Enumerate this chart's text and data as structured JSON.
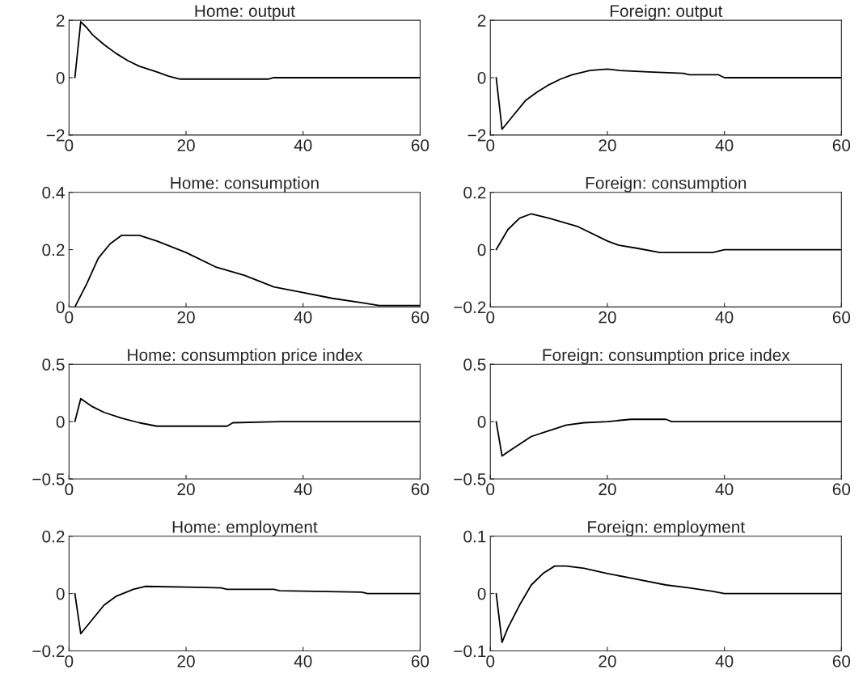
{
  "chart_data": [
    {
      "type": "line",
      "title": "Home: output",
      "xlim": [
        0,
        60
      ],
      "xticks": [
        0,
        20,
        40,
        60
      ],
      "ylim": [
        -2,
        2
      ],
      "yticks": [
        {
          "value": -2,
          "label": "−2"
        },
        0,
        2
      ],
      "grid": false,
      "legend": false,
      "series": [
        {
          "color": "#000000",
          "x": [
            1,
            2,
            3,
            4,
            6,
            8,
            10,
            12,
            15,
            17,
            19,
            25,
            34,
            35,
            60
          ],
          "values": [
            0,
            1.95,
            1.75,
            1.5,
            1.15,
            0.85,
            0.6,
            0.4,
            0.2,
            0.05,
            -0.05,
            -0.05,
            -0.05,
            0,
            0
          ]
        }
      ]
    },
    {
      "type": "line",
      "title": "Foreign: output",
      "xlim": [
        0,
        60
      ],
      "xticks": [
        0,
        20,
        40,
        60
      ],
      "ylim": [
        -2,
        2
      ],
      "yticks": [
        {
          "value": -2,
          "label": "−2"
        },
        0,
        2
      ],
      "grid": false,
      "legend": false,
      "series": [
        {
          "color": "#000000",
          "x": [
            1,
            2,
            4,
            6,
            8,
            10,
            12,
            14,
            17,
            20,
            22,
            27,
            33,
            34,
            39,
            40,
            60
          ],
          "values": [
            0,
            -1.8,
            -1.3,
            -0.8,
            -0.5,
            -0.25,
            -0.05,
            0.1,
            0.25,
            0.3,
            0.25,
            0.2,
            0.15,
            0.1,
            0.1,
            0,
            0
          ]
        }
      ]
    },
    {
      "type": "line",
      "title": "Home: consumption",
      "xlim": [
        0,
        60
      ],
      "xticks": [
        0,
        20,
        40,
        60
      ],
      "ylim": [
        0,
        0.4
      ],
      "yticks": [
        0,
        0.2,
        0.4
      ],
      "grid": false,
      "legend": false,
      "series": [
        {
          "color": "#000000",
          "x": [
            1,
            3,
            5,
            7,
            9,
            12,
            15,
            20,
            25,
            30,
            35,
            40,
            45,
            50,
            53,
            60
          ],
          "values": [
            0,
            0.08,
            0.17,
            0.22,
            0.25,
            0.25,
            0.23,
            0.19,
            0.14,
            0.11,
            0.07,
            0.05,
            0.03,
            0.015,
            0.005,
            0.005
          ]
        }
      ]
    },
    {
      "type": "line",
      "title": "Foreign: consumption",
      "xlim": [
        0,
        60
      ],
      "xticks": [
        0,
        20,
        40,
        60
      ],
      "ylim": [
        -0.2,
        0.2
      ],
      "yticks": [
        {
          "value": -0.2,
          "label": "−0.2"
        },
        0,
        0.2
      ],
      "grid": false,
      "legend": false,
      "series": [
        {
          "color": "#000000",
          "x": [
            1,
            3,
            5,
            7,
            10,
            15,
            20,
            22,
            25,
            29,
            38,
            40,
            60
          ],
          "values": [
            0,
            0.07,
            0.11,
            0.125,
            0.11,
            0.08,
            0.03,
            0.015,
            0.005,
            -0.01,
            -0.01,
            0,
            0
          ]
        }
      ]
    },
    {
      "type": "line",
      "title": "Home: consumption price index",
      "xlim": [
        0,
        60
      ],
      "xticks": [
        0,
        20,
        40,
        60
      ],
      "ylim": [
        -0.5,
        0.5
      ],
      "yticks": [
        {
          "value": -0.5,
          "label": "−0.5"
        },
        0,
        0.5
      ],
      "grid": false,
      "legend": false,
      "series": [
        {
          "color": "#000000",
          "x": [
            1,
            2,
            4,
            6,
            9,
            12,
            15,
            27,
            28,
            36,
            60
          ],
          "values": [
            0,
            0.2,
            0.13,
            0.08,
            0.03,
            -0.01,
            -0.04,
            -0.04,
            -0.01,
            0,
            0
          ]
        }
      ]
    },
    {
      "type": "line",
      "title": "Foreign: consumption price index",
      "xlim": [
        0,
        60
      ],
      "xticks": [
        0,
        20,
        40,
        60
      ],
      "ylim": [
        -0.5,
        0.5
      ],
      "yticks": [
        {
          "value": -0.5,
          "label": "−0.5"
        },
        0,
        0.5
      ],
      "grid": false,
      "legend": false,
      "series": [
        {
          "color": "#000000",
          "x": [
            1,
            2,
            4,
            7,
            10,
            13,
            16,
            20,
            24,
            30,
            31,
            60
          ],
          "values": [
            0,
            -0.3,
            -0.23,
            -0.13,
            -0.08,
            -0.03,
            -0.01,
            0,
            0.02,
            0.02,
            0,
            0
          ]
        }
      ]
    },
    {
      "type": "line",
      "title": "Home: employment",
      "xlim": [
        0,
        60
      ],
      "xticks": [
        0,
        20,
        40,
        60
      ],
      "ylim": [
        -0.2,
        0.2
      ],
      "yticks": [
        {
          "value": -0.2,
          "label": "−0.2"
        },
        0,
        0.2
      ],
      "grid": false,
      "legend": false,
      "series": [
        {
          "color": "#000000",
          "x": [
            1,
            2,
            4,
            6,
            8,
            11,
            13,
            26,
            27,
            35,
            36,
            50,
            51,
            60
          ],
          "values": [
            0,
            -0.14,
            -0.09,
            -0.04,
            -0.01,
            0.015,
            0.025,
            0.02,
            0.015,
            0.015,
            0.01,
            0.005,
            0,
            0
          ]
        }
      ]
    },
    {
      "type": "line",
      "title": "Foreign: employment",
      "xlim": [
        0,
        60
      ],
      "xticks": [
        0,
        20,
        40,
        60
      ],
      "ylim": [
        -0.1,
        0.1
      ],
      "yticks": [
        {
          "value": -0.1,
          "label": "−0.1"
        },
        0,
        0.1
      ],
      "grid": false,
      "legend": false,
      "series": [
        {
          "color": "#000000",
          "x": [
            1,
            2,
            3,
            5,
            7,
            9,
            11,
            13,
            16,
            20,
            25,
            30,
            34,
            38,
            40,
            60
          ],
          "values": [
            0,
            -0.085,
            -0.06,
            -0.02,
            0.015,
            0.035,
            0.048,
            0.048,
            0.044,
            0.035,
            0.025,
            0.015,
            0.01,
            0.004,
            0,
            0
          ]
        }
      ]
    }
  ]
}
